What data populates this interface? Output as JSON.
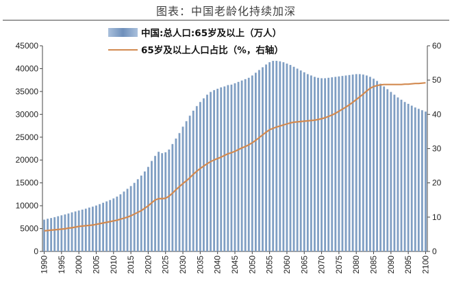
{
  "title": "图表：中国老龄化持续加深",
  "chart_data": {
    "type": "bar+line",
    "x": [
      1990,
      1991,
      1992,
      1993,
      1994,
      1995,
      1996,
      1997,
      1998,
      1999,
      2000,
      2001,
      2002,
      2003,
      2004,
      2005,
      2006,
      2007,
      2008,
      2009,
      2010,
      2011,
      2012,
      2013,
      2014,
      2015,
      2016,
      2017,
      2018,
      2019,
      2020,
      2021,
      2022,
      2023,
      2024,
      2025,
      2026,
      2027,
      2028,
      2029,
      2030,
      2031,
      2032,
      2033,
      2034,
      2035,
      2036,
      2037,
      2038,
      2039,
      2040,
      2041,
      2042,
      2043,
      2044,
      2045,
      2046,
      2047,
      2048,
      2049,
      2050,
      2051,
      2052,
      2053,
      2054,
      2055,
      2056,
      2057,
      2058,
      2059,
      2060,
      2061,
      2062,
      2063,
      2064,
      2065,
      2066,
      2067,
      2068,
      2069,
      2070,
      2071,
      2072,
      2073,
      2074,
      2075,
      2076,
      2077,
      2078,
      2079,
      2080,
      2081,
      2082,
      2083,
      2084,
      2085,
      2086,
      2087,
      2088,
      2089,
      2090,
      2091,
      2092,
      2093,
      2094,
      2095,
      2096,
      2097,
      2098,
      2099,
      2100
    ],
    "xtick_labels": [
      "1990",
      "1995",
      "2000",
      "2005",
      "2010",
      "2015",
      "2020",
      "2025",
      "2030",
      "2035",
      "2040",
      "2045",
      "2050",
      "2055",
      "2060",
      "2065",
      "2070",
      "2075",
      "2080",
      "2085",
      "2090",
      "2095",
      "2100"
    ],
    "series": [
      {
        "name": "中国:总人口:65岁及以上（万人）",
        "type": "bar",
        "axis": "left",
        "color": "#7f9ec3",
        "values": [
          6950,
          7150,
          7300,
          7500,
          7700,
          7900,
          8100,
          8300,
          8550,
          8750,
          8950,
          9150,
          9350,
          9600,
          9800,
          10050,
          10350,
          10650,
          10950,
          11250,
          11600,
          12000,
          12500,
          13100,
          13700,
          14300,
          15000,
          15800,
          16600,
          17500,
          18500,
          19800,
          20900,
          21800,
          21500,
          21700,
          22300,
          23500,
          24700,
          25900,
          27300,
          28500,
          29700,
          30800,
          31800,
          32700,
          33500,
          34300,
          34900,
          35300,
          35600,
          35900,
          36100,
          36400,
          36500,
          36800,
          37100,
          37400,
          37700,
          38000,
          38500,
          39100,
          39700,
          40300,
          40900,
          41400,
          41700,
          41700,
          41600,
          41400,
          41100,
          40800,
          40400,
          40000,
          39600,
          39200,
          38800,
          38500,
          38200,
          38000,
          37900,
          37900,
          38000,
          38100,
          38200,
          38300,
          38400,
          38500,
          38600,
          38700,
          38800,
          38800,
          38700,
          38500,
          38200,
          37800,
          37300,
          36700,
          36100,
          35500,
          34900,
          34300,
          33700,
          33200,
          32700,
          32300,
          31900,
          31500,
          31200,
          30900,
          30600
        ]
      },
      {
        "name": "65岁及以上人口占比（%，右轴）",
        "type": "line",
        "axis": "right",
        "color": "#d2894f",
        "values": [
          6.0,
          6.1,
          6.2,
          6.3,
          6.4,
          6.5,
          6.6,
          6.8,
          6.9,
          7.1,
          7.3,
          7.4,
          7.5,
          7.6,
          7.7,
          7.9,
          8.1,
          8.3,
          8.5,
          8.7,
          8.9,
          9.1,
          9.4,
          9.7,
          10.0,
          10.4,
          10.9,
          11.4,
          11.9,
          12.6,
          13.3,
          14.2,
          15.0,
          15.4,
          15.4,
          15.5,
          16.1,
          17.0,
          18.0,
          18.9,
          19.8,
          20.6,
          21.5,
          22.5,
          23.4,
          24.2,
          24.9,
          25.6,
          26.2,
          26.7,
          27.1,
          27.5,
          28.0,
          28.5,
          28.8,
          29.2,
          29.7,
          30.2,
          30.6,
          31.1,
          31.7,
          32.4,
          33.2,
          34.0,
          34.8,
          35.5,
          35.9,
          36.3,
          36.6,
          36.9,
          37.2,
          37.5,
          37.7,
          37.8,
          37.9,
          38.0,
          38.1,
          38.2,
          38.3,
          38.5,
          38.7,
          39.0,
          39.4,
          39.8,
          40.3,
          40.9,
          41.5,
          42.1,
          42.8,
          43.5,
          44.3,
          45.1,
          45.9,
          46.8,
          47.6,
          48.1,
          48.4,
          48.6,
          48.7,
          48.7,
          48.7,
          48.7,
          48.7,
          48.7,
          48.8,
          48.8,
          48.9,
          49.0,
          49.0,
          49.1,
          49.2
        ]
      }
    ],
    "ylim_left": [
      0,
      45000
    ],
    "yticks_left": [
      "0",
      "5000",
      "10000",
      "15000",
      "20000",
      "25000",
      "30000",
      "35000",
      "40000",
      "45000"
    ],
    "ylim_right": [
      0,
      60
    ],
    "yticks_right": [
      "0",
      "10",
      "20",
      "30",
      "40",
      "50",
      "60"
    ],
    "xlim": [
      1990,
      2100
    ],
    "grid": false,
    "legend_position": "top"
  }
}
